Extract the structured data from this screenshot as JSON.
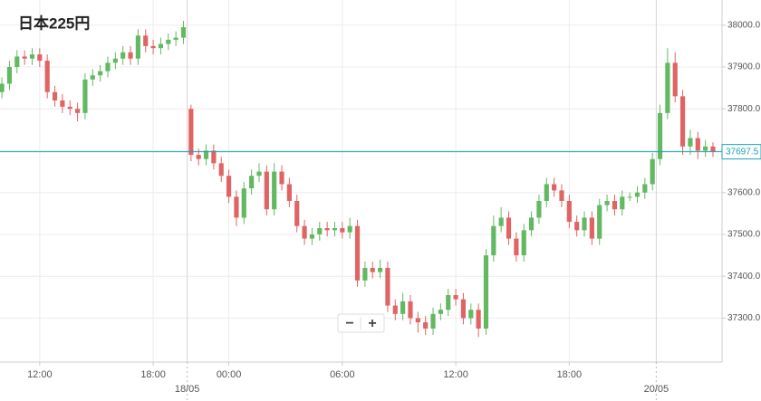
{
  "chart_data": {
    "type": "candlestick",
    "title": "日本225円",
    "ohlc": [
      [
        37840,
        37875,
        37825,
        37860
      ],
      [
        37860,
        37915,
        37845,
        37900
      ],
      [
        37900,
        37940,
        37885,
        37925
      ],
      [
        37925,
        37940,
        37905,
        37920
      ],
      [
        37920,
        37945,
        37905,
        37930
      ],
      [
        37930,
        37945,
        37900,
        37915
      ],
      [
        37915,
        37930,
        37825,
        37840
      ],
      [
        37840,
        37855,
        37805,
        37820
      ],
      [
        37820,
        37835,
        37790,
        37805
      ],
      [
        37805,
        37820,
        37785,
        37800
      ],
      [
        37800,
        37815,
        37770,
        37790
      ],
      [
        37790,
        37885,
        37775,
        37870
      ],
      [
        37870,
        37895,
        37855,
        37880
      ],
      [
        37880,
        37905,
        37865,
        37890
      ],
      [
        37890,
        37925,
        37875,
        37910
      ],
      [
        37910,
        37935,
        37895,
        37920
      ],
      [
        37920,
        37950,
        37905,
        37935
      ],
      [
        37935,
        37950,
        37905,
        37920
      ],
      [
        37920,
        37990,
        37905,
        37975
      ],
      [
        37975,
        37990,
        37935,
        37950
      ],
      [
        37950,
        37965,
        37930,
        37945
      ],
      [
        37945,
        37970,
        37930,
        37955
      ],
      [
        37955,
        37980,
        37940,
        37965
      ],
      [
        37965,
        37985,
        37950,
        37970
      ],
      [
        37970,
        38010,
        37955,
        37995
      ],
      [
        37800,
        37810,
        37675,
        37690
      ],
      [
        37690,
        37705,
        37665,
        37680
      ],
      [
        37680,
        37715,
        37665,
        37700
      ],
      [
        37700,
        37715,
        37655,
        37670
      ],
      [
        37670,
        37685,
        37625,
        37640
      ],
      [
        37640,
        37655,
        37575,
        37590
      ],
      [
        37590,
        37605,
        37520,
        37540
      ],
      [
        37540,
        37625,
        37525,
        37610
      ],
      [
        37610,
        37655,
        37595,
        37640
      ],
      [
        37640,
        37670,
        37625,
        37650
      ],
      [
        37650,
        37665,
        37545,
        37560
      ],
      [
        37560,
        37670,
        37545,
        37650
      ],
      [
        37650,
        37665,
        37605,
        37620
      ],
      [
        37620,
        37635,
        37565,
        37580
      ],
      [
        37580,
        37595,
        37505,
        37520
      ],
      [
        37520,
        37535,
        37475,
        37490
      ],
      [
        37490,
        37515,
        37475,
        37500
      ],
      [
        37500,
        37530,
        37485,
        37515
      ],
      [
        37515,
        37530,
        37495,
        37510
      ],
      [
        37510,
        37530,
        37495,
        37515
      ],
      [
        37515,
        37530,
        37490,
        37505
      ],
      [
        37505,
        37540,
        37490,
        37520
      ],
      [
        37520,
        37535,
        37375,
        37390
      ],
      [
        37390,
        37435,
        37375,
        37420
      ],
      [
        37420,
        37435,
        37395,
        37410
      ],
      [
        37410,
        37440,
        37395,
        37420
      ],
      [
        37420,
        37435,
        37315,
        37330
      ],
      [
        37330,
        37345,
        37295,
        37310
      ],
      [
        37310,
        37360,
        37295,
        37340
      ],
      [
        37340,
        37355,
        37285,
        37300
      ],
      [
        37300,
        37315,
        37265,
        37290
      ],
      [
        37290,
        37305,
        37260,
        37275
      ],
      [
        37275,
        37325,
        37260,
        37310
      ],
      [
        37310,
        37335,
        37295,
        37320
      ],
      [
        37320,
        37370,
        37305,
        37355
      ],
      [
        37355,
        37370,
        37330,
        37345
      ],
      [
        37345,
        37360,
        37285,
        37300
      ],
      [
        37300,
        37335,
        37285,
        37320
      ],
      [
        37320,
        37335,
        37255,
        37275
      ],
      [
        37275,
        37465,
        37260,
        37450
      ],
      [
        37450,
        37545,
        37435,
        37520
      ],
      [
        37520,
        37565,
        37505,
        37540
      ],
      [
        37540,
        37555,
        37475,
        37490
      ],
      [
        37490,
        37505,
        37435,
        37450
      ],
      [
        37450,
        37525,
        37435,
        37510
      ],
      [
        37510,
        37555,
        37495,
        37540
      ],
      [
        37540,
        37595,
        37525,
        37580
      ],
      [
        37580,
        37635,
        37565,
        37620
      ],
      [
        37620,
        37635,
        37590,
        37605
      ],
      [
        37605,
        37620,
        37565,
        37580
      ],
      [
        37580,
        37595,
        37515,
        37530
      ],
      [
        37530,
        37545,
        37495,
        37510
      ],
      [
        37510,
        37555,
        37495,
        37540
      ],
      [
        37540,
        37555,
        37475,
        37490
      ],
      [
        37490,
        37585,
        37475,
        37570
      ],
      [
        37570,
        37595,
        37555,
        37580
      ],
      [
        37580,
        37595,
        37545,
        37560
      ],
      [
        37560,
        37605,
        37545,
        37590
      ],
      [
        37590,
        37600,
        37580,
        37590
      ],
      [
        37590,
        37615,
        37575,
        37600
      ],
      [
        37600,
        37635,
        37585,
        37620
      ],
      [
        37620,
        37695,
        37605,
        37680
      ],
      [
        37680,
        37810,
        37665,
        37790
      ],
      [
        37790,
        37945,
        37775,
        37910
      ],
      [
        37910,
        37935,
        37815,
        37830
      ],
      [
        37830,
        37845,
        37690,
        37710
      ],
      [
        37710,
        37750,
        37690,
        37730
      ],
      [
        37730,
        37745,
        37680,
        37700
      ],
      [
        37700,
        37725,
        37685,
        37710
      ],
      [
        37710,
        37720,
        37685,
        37697.5
      ]
    ],
    "up_color": "#62b962",
    "down_color": "#e06464",
    "xlim": [
      -0.25,
      95.2
    ],
    "xticks": [
      {
        "value": 5,
        "label": "12:00"
      },
      {
        "value": 20,
        "label": "18:00"
      },
      {
        "value": 30,
        "label": "00:00"
      },
      {
        "value": 45,
        "label": "06:00"
      },
      {
        "value": 60,
        "label": "12:00"
      },
      {
        "value": 75,
        "label": "18:00"
      }
    ],
    "date_ticks": [
      {
        "value": 24.5,
        "label": "18/05"
      },
      {
        "value": 86.5,
        "label": "20/05"
      }
    ],
    "ylim": [
      37195,
      38060
    ],
    "yticks": [
      {
        "value": 37300,
        "label": "37300.0"
      },
      {
        "value": 37400,
        "label": "37400.0"
      },
      {
        "value": 37500,
        "label": "37500.0"
      },
      {
        "value": 37600,
        "label": "37600.0"
      },
      {
        "value": 37700,
        "label": "37700.0"
      },
      {
        "value": 37800,
        "label": "37800.0"
      },
      {
        "value": 37900,
        "label": "37900.0"
      },
      {
        "value": 38000,
        "label": "38000.0"
      }
    ],
    "last_price": 37697.5,
    "last_price_color": "#1aa3b8",
    "grid": true,
    "zoom_controls": [
      "−",
      "+"
    ]
  }
}
